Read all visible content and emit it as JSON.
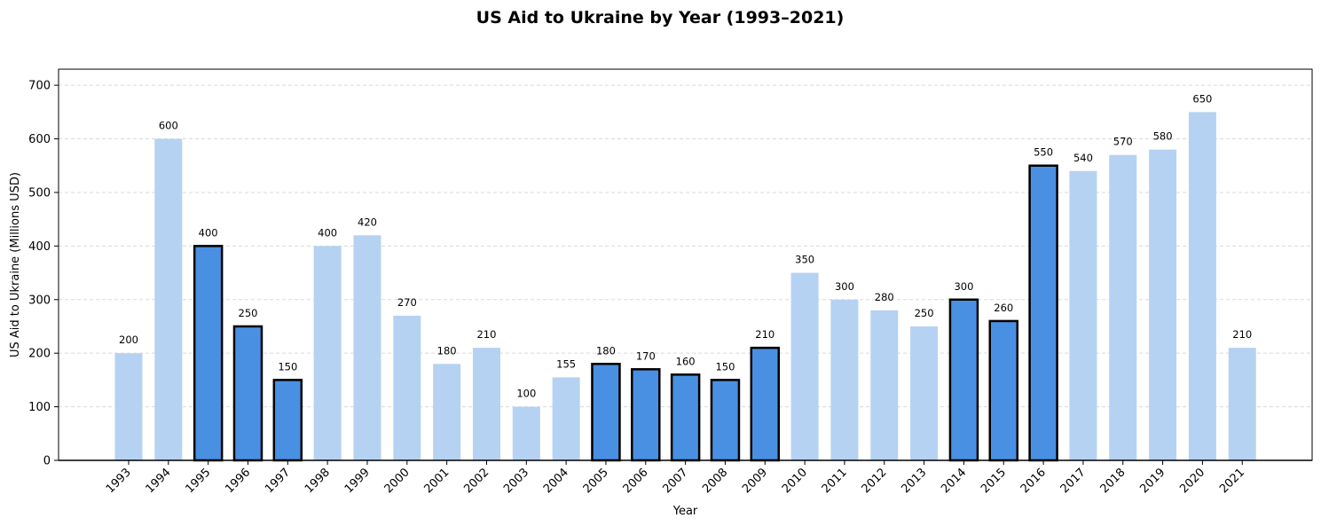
{
  "chart_data": {
    "type": "bar",
    "title": "US Aid to Ukraine by Year (1993–2021)",
    "xlabel": "Year",
    "ylabel": "US Aid to Ukraine (Millions USD)",
    "ylim": [
      0,
      730
    ],
    "yticks": [
      0,
      100,
      200,
      300,
      400,
      500,
      600,
      700
    ],
    "grid": "y-dashed",
    "categories": [
      "1993",
      "1994",
      "1995",
      "1996",
      "1997",
      "1998",
      "1999",
      "2000",
      "2001",
      "2002",
      "2003",
      "2004",
      "2005",
      "2006",
      "2007",
      "2008",
      "2009",
      "2010",
      "2011",
      "2012",
      "2013",
      "2014",
      "2015",
      "2016",
      "2017",
      "2018",
      "2019",
      "2020",
      "2021"
    ],
    "values": [
      200,
      600,
      400,
      250,
      150,
      400,
      420,
      270,
      180,
      210,
      100,
      155,
      180,
      170,
      160,
      150,
      210,
      350,
      300,
      280,
      250,
      300,
      260,
      550,
      540,
      570,
      580,
      650,
      210
    ],
    "highlighted": [
      false,
      false,
      true,
      true,
      true,
      false,
      false,
      false,
      false,
      false,
      false,
      false,
      true,
      true,
      true,
      true,
      true,
      false,
      false,
      false,
      false,
      true,
      true,
      true,
      false,
      false,
      false,
      false,
      false
    ],
    "colors": {
      "normal_bar": "#b5d2f2",
      "highlight_bar": "#4a90e2",
      "highlight_edge": "#000000",
      "grid": "#d9d9d9"
    }
  }
}
